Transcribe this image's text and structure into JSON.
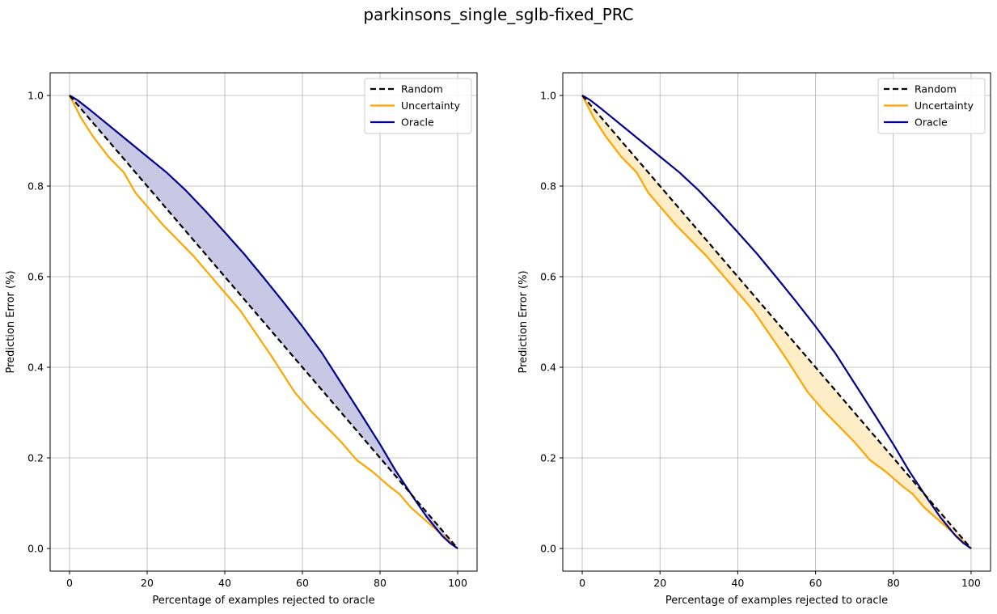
{
  "figure": {
    "title": "parkinsons_single_sglb-fixed_PRC"
  },
  "colors": {
    "random": "#000000",
    "uncertainty": "#ffa500",
    "oracle": "#00008b",
    "oracle_fill": "#c8c8e4",
    "uncertainty_fill": "#ffedc8",
    "grid": "#b0b0b0"
  },
  "chart_data": [
    {
      "type": "line",
      "title": "",
      "xlabel": "Percentage of examples rejected to oracle",
      "ylabel": "Prediction Error (%)",
      "xlim": [
        -5,
        105
      ],
      "ylim": [
        -0.05,
        1.05
      ],
      "xticks": [
        0,
        20,
        40,
        60,
        80,
        100
      ],
      "xtick_labels": [
        "0",
        "20",
        "40",
        "60",
        "80",
        "100"
      ],
      "yticks": [
        0.0,
        0.2,
        0.4,
        0.6,
        0.8,
        1.0
      ],
      "ytick_labels": [
        "0.0",
        "0.2",
        "0.4",
        "0.6",
        "0.8",
        "1.0"
      ],
      "grid": true,
      "legend_position": "top-right",
      "fill_between": [
        "Random",
        "Oracle"
      ],
      "series": [
        {
          "name": "Random",
          "style": "dashed",
          "x": [
            0,
            100
          ],
          "y": [
            1.0,
            0.0
          ]
        },
        {
          "name": "Uncertainty",
          "style": "solid",
          "x": [
            0,
            3,
            6,
            10,
            14,
            17,
            20,
            24,
            28,
            32,
            36,
            40,
            44,
            48,
            52,
            55,
            58,
            62,
            66,
            70,
            74,
            78,
            82,
            85,
            88,
            92,
            96,
            100
          ],
          "y": [
            1.0,
            0.95,
            0.91,
            0.865,
            0.83,
            0.785,
            0.755,
            0.715,
            0.68,
            0.645,
            0.605,
            0.565,
            0.525,
            0.475,
            0.425,
            0.385,
            0.345,
            0.305,
            0.27,
            0.235,
            0.195,
            0.17,
            0.14,
            0.12,
            0.09,
            0.06,
            0.03,
            0.0
          ]
        },
        {
          "name": "Oracle",
          "style": "solid",
          "x": [
            0,
            2,
            5,
            10,
            15,
            20,
            25,
            30,
            35,
            40,
            45,
            50,
            55,
            60,
            65,
            70,
            75,
            80,
            84,
            88,
            92,
            96,
            98,
            100
          ],
          "y": [
            1.0,
            0.99,
            0.97,
            0.935,
            0.9,
            0.865,
            0.83,
            0.79,
            0.745,
            0.698,
            0.65,
            0.598,
            0.545,
            0.49,
            0.432,
            0.365,
            0.298,
            0.23,
            0.172,
            0.12,
            0.07,
            0.028,
            0.012,
            0.0
          ]
        }
      ]
    },
    {
      "type": "line",
      "title": "",
      "xlabel": "Percentage of examples rejected to oracle",
      "ylabel": "Prediction Error (%)",
      "xlim": [
        -5,
        105
      ],
      "ylim": [
        -0.05,
        1.05
      ],
      "xticks": [
        0,
        20,
        40,
        60,
        80,
        100
      ],
      "xtick_labels": [
        "0",
        "20",
        "40",
        "60",
        "80",
        "100"
      ],
      "yticks": [
        0.0,
        0.2,
        0.4,
        0.6,
        0.8,
        1.0
      ],
      "ytick_labels": [
        "0.0",
        "0.2",
        "0.4",
        "0.6",
        "0.8",
        "1.0"
      ],
      "grid": true,
      "legend_position": "top-right",
      "fill_between": [
        "Random",
        "Uncertainty"
      ],
      "series": [
        {
          "name": "Random",
          "style": "dashed",
          "x": [
            0,
            100
          ],
          "y": [
            1.0,
            0.0
          ]
        },
        {
          "name": "Uncertainty",
          "style": "solid",
          "x": [
            0,
            3,
            6,
            10,
            14,
            17,
            20,
            24,
            28,
            32,
            36,
            40,
            44,
            48,
            52,
            55,
            58,
            62,
            66,
            70,
            74,
            78,
            82,
            85,
            88,
            92,
            96,
            100
          ],
          "y": [
            1.0,
            0.95,
            0.91,
            0.865,
            0.83,
            0.785,
            0.755,
            0.715,
            0.68,
            0.645,
            0.605,
            0.565,
            0.525,
            0.475,
            0.425,
            0.385,
            0.345,
            0.305,
            0.27,
            0.235,
            0.195,
            0.17,
            0.14,
            0.12,
            0.09,
            0.06,
            0.03,
            0.0
          ]
        },
        {
          "name": "Oracle",
          "style": "solid",
          "x": [
            0,
            2,
            5,
            10,
            15,
            20,
            25,
            30,
            35,
            40,
            45,
            50,
            55,
            60,
            65,
            70,
            75,
            80,
            84,
            88,
            92,
            96,
            98,
            100
          ],
          "y": [
            1.0,
            0.99,
            0.97,
            0.935,
            0.9,
            0.865,
            0.83,
            0.79,
            0.745,
            0.698,
            0.65,
            0.598,
            0.545,
            0.49,
            0.432,
            0.365,
            0.298,
            0.23,
            0.172,
            0.12,
            0.07,
            0.028,
            0.012,
            0.0
          ]
        }
      ]
    }
  ]
}
